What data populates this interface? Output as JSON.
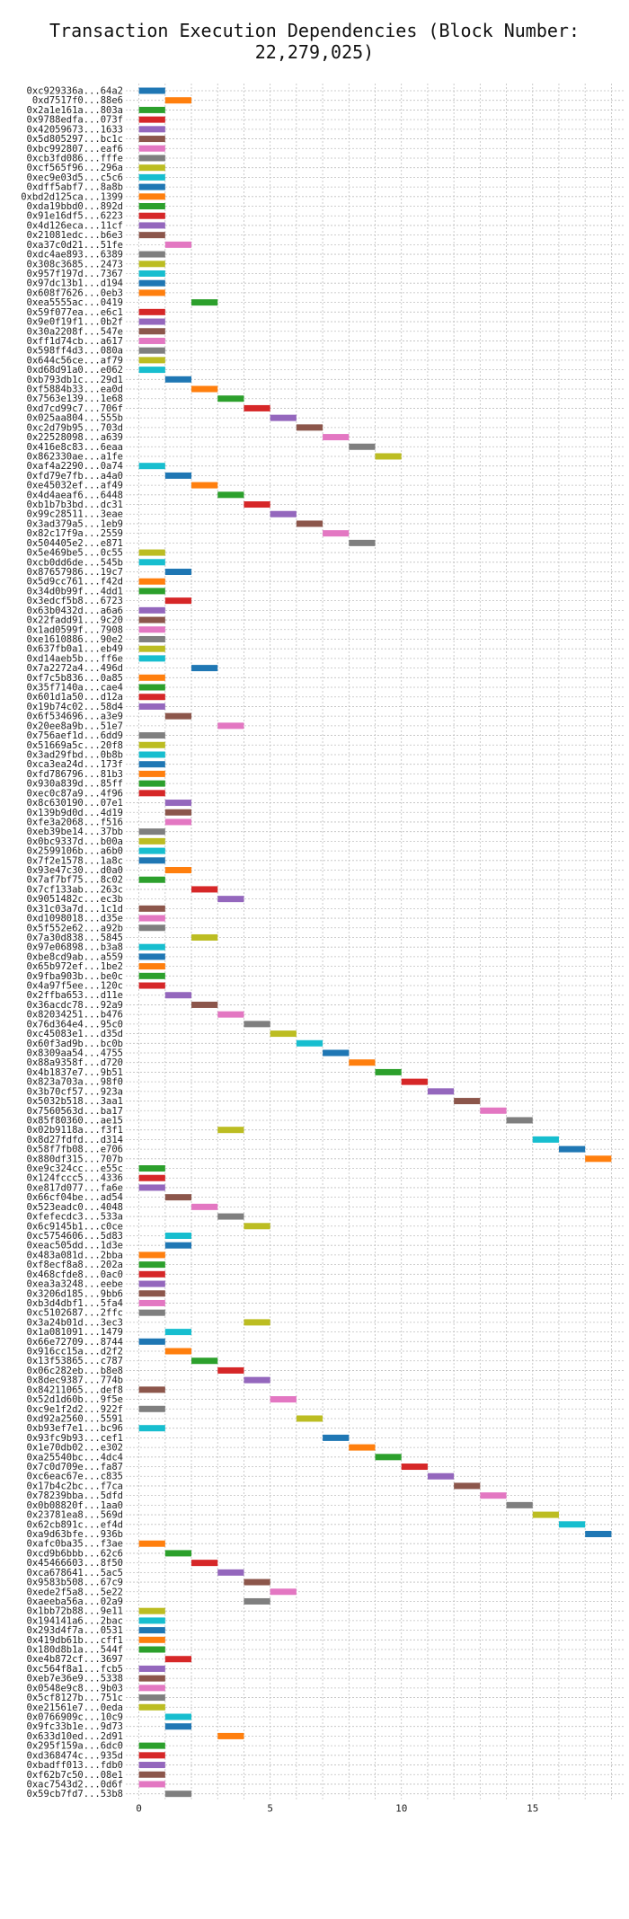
{
  "chart_data": {
    "type": "bar",
    "orientation": "horizontal",
    "title": "Transaction Execution Dependencies (Block Number: 22,279,025)",
    "xlabel": "",
    "ylabel": "",
    "xlim": [
      -0.5,
      18.5
    ],
    "xticks": [
      0,
      5,
      10,
      15
    ],
    "grid": true,
    "palette": [
      "#1f77b4",
      "#ff7f0e",
      "#2ca02c",
      "#d62728",
      "#9467bd",
      "#8c564b",
      "#e377c2",
      "#7f7f7f",
      "#bcbd22",
      "#17becf"
    ],
    "bar_width": 1,
    "transactions": [
      {
        "hash": "0xc929336a...64a2",
        "start": 0
      },
      {
        "hash": "0xd7517f0...88e6",
        "start": 1
      },
      {
        "hash": "0x2a1e161a...803a",
        "start": 0
      },
      {
        "hash": "0x9788edfa...073f",
        "start": 0
      },
      {
        "hash": "0x42059673...1633",
        "start": 0
      },
      {
        "hash": "0x5d805297...bc1c",
        "start": 0
      },
      {
        "hash": "0xbc992807...eaf6",
        "start": 0
      },
      {
        "hash": "0xcb3fd086...fffe",
        "start": 0
      },
      {
        "hash": "0xcf565f96...296a",
        "start": 0
      },
      {
        "hash": "0xec9e03d5...c5c6",
        "start": 0
      },
      {
        "hash": "0xdff5abf7...8a8b",
        "start": 0
      },
      {
        "hash": "0xbd2d125ca...1399",
        "start": 0
      },
      {
        "hash": "0xda19bbd0...892d",
        "start": 0
      },
      {
        "hash": "0x91e16df5...6223",
        "start": 0
      },
      {
        "hash": "0x4d126eca...11cf",
        "start": 0
      },
      {
        "hash": "0x21081edc...b6e3",
        "start": 0
      },
      {
        "hash": "0xa37c0d21...51fe",
        "start": 1
      },
      {
        "hash": "0xdc4ae893...6389",
        "start": 0
      },
      {
        "hash": "0x308c3685...2473",
        "start": 0
      },
      {
        "hash": "0x957f197d...7367",
        "start": 0
      },
      {
        "hash": "0x97dc13b1...d194",
        "start": 0
      },
      {
        "hash": "0x608f7626...0eb3",
        "start": 0
      },
      {
        "hash": "0xea5555ac...0419",
        "start": 2
      },
      {
        "hash": "0x59f077ea...e6c1",
        "start": 0
      },
      {
        "hash": "0x9e0f19f1...0b2f",
        "start": 0
      },
      {
        "hash": "0x30a2208f...547e",
        "start": 0
      },
      {
        "hash": "0xff1d74cb...a617",
        "start": 0
      },
      {
        "hash": "0x598ff4d3...080a",
        "start": 0
      },
      {
        "hash": "0x644c56ce...af79",
        "start": 0
      },
      {
        "hash": "0xd68d91a0...e062",
        "start": 0
      },
      {
        "hash": "0xb793db1c...29d1",
        "start": 1
      },
      {
        "hash": "0xf5884b33...ea0d",
        "start": 2
      },
      {
        "hash": "0x7563e139...1e68",
        "start": 3
      },
      {
        "hash": "0xd7cd99c7...706f",
        "start": 4
      },
      {
        "hash": "0x025aa804...555b",
        "start": 5
      },
      {
        "hash": "0xc2d79b95...703d",
        "start": 6
      },
      {
        "hash": "0x22528098...a639",
        "start": 7
      },
      {
        "hash": "0x416e8c83...6eaa",
        "start": 8
      },
      {
        "hash": "0x862330ae...a1fe",
        "start": 9
      },
      {
        "hash": "0xaf4a2290...0a74",
        "start": 0
      },
      {
        "hash": "0xfd79e7fb...a4a0",
        "start": 1
      },
      {
        "hash": "0xe45032ef...af49",
        "start": 2
      },
      {
        "hash": "0x4d4aeaf6...6448",
        "start": 3
      },
      {
        "hash": "0xb1b7b3bd...dc31",
        "start": 4
      },
      {
        "hash": "0x99c28511...3eae",
        "start": 5
      },
      {
        "hash": "0x3ad379a5...1eb9",
        "start": 6
      },
      {
        "hash": "0x82c17f9a...2559",
        "start": 7
      },
      {
        "hash": "0x504405e2...e871",
        "start": 8
      },
      {
        "hash": "0x5e469be5...0c55",
        "start": 0
      },
      {
        "hash": "0xcb0dd6de...545b",
        "start": 0
      },
      {
        "hash": "0x87657986...19c7",
        "start": 1
      },
      {
        "hash": "0x5d9cc761...f42d",
        "start": 0
      },
      {
        "hash": "0x34d0b99f...4dd1",
        "start": 0
      },
      {
        "hash": "0x3edcf5b8...6723",
        "start": 1
      },
      {
        "hash": "0x63b0432d...a6a6",
        "start": 0
      },
      {
        "hash": "0x22fadd91...9c20",
        "start": 0
      },
      {
        "hash": "0x1ad0599f...7908",
        "start": 0
      },
      {
        "hash": "0xe1610886...90e2",
        "start": 0
      },
      {
        "hash": "0x637fb0a1...eb49",
        "start": 0
      },
      {
        "hash": "0xd14aeb5b...ff6e",
        "start": 0
      },
      {
        "hash": "0x7a2272a4...496d",
        "start": 2
      },
      {
        "hash": "0xf7c5b836...0a85",
        "start": 0
      },
      {
        "hash": "0x35f7140a...cae4",
        "start": 0
      },
      {
        "hash": "0x601d1a50...d12a",
        "start": 0
      },
      {
        "hash": "0x19b74c02...58d4",
        "start": 0
      },
      {
        "hash": "0x6f534696...a3e9",
        "start": 1
      },
      {
        "hash": "0x20ee8a9b...51e7",
        "start": 3
      },
      {
        "hash": "0x756aef1d...6dd9",
        "start": 0
      },
      {
        "hash": "0x51669a5c...20f8",
        "start": 0
      },
      {
        "hash": "0x3ad29fbd...0b8b",
        "start": 0
      },
      {
        "hash": "0xca3ea24d...173f",
        "start": 0
      },
      {
        "hash": "0xfd786796...81b3",
        "start": 0
      },
      {
        "hash": "0x930a839d...85ff",
        "start": 0
      },
      {
        "hash": "0xec0c87a9...4f96",
        "start": 0
      },
      {
        "hash": "0x8c630190...07e1",
        "start": 1
      },
      {
        "hash": "0x139b9d0d...4d19",
        "start": 1
      },
      {
        "hash": "0xfe3a2068...f516",
        "start": 1
      },
      {
        "hash": "0xeb39be14...37bb",
        "start": 0
      },
      {
        "hash": "0x0bc9337d...b00a",
        "start": 0
      },
      {
        "hash": "0x2599106b...a6b0",
        "start": 0
      },
      {
        "hash": "0x7f2e1578...1a8c",
        "start": 0
      },
      {
        "hash": "0x93e47c30...d0a0",
        "start": 1
      },
      {
        "hash": "0x7af7bf75...8c02",
        "start": 0
      },
      {
        "hash": "0x7cf133ab...263c",
        "start": 2
      },
      {
        "hash": "0x9051482c...ec3b",
        "start": 3
      },
      {
        "hash": "0x31c03a7d...1c1d",
        "start": 0
      },
      {
        "hash": "0xd1098018...d35e",
        "start": 0
      },
      {
        "hash": "0x5f552e62...a92b",
        "start": 0
      },
      {
        "hash": "0x7a30d838...5845",
        "start": 2
      },
      {
        "hash": "0x97e06898...b3a8",
        "start": 0
      },
      {
        "hash": "0xbe8cd9ab...a559",
        "start": 0
      },
      {
        "hash": "0x65b972ef...1be2",
        "start": 0
      },
      {
        "hash": "0x9fba903b...be0c",
        "start": 0
      },
      {
        "hash": "0x4a97f5ee...120c",
        "start": 0
      },
      {
        "hash": "0x2ffba653...d11e",
        "start": 1
      },
      {
        "hash": "0x36acdc78...92a9",
        "start": 2
      },
      {
        "hash": "0x82034251...b476",
        "start": 3
      },
      {
        "hash": "0x76d364e4...95c0",
        "start": 4
      },
      {
        "hash": "0xc45083e1...d35d",
        "start": 5
      },
      {
        "hash": "0x60f3ad9b...bc0b",
        "start": 6
      },
      {
        "hash": "0x8309aa54...4755",
        "start": 7
      },
      {
        "hash": "0x88a9358f...d720",
        "start": 8
      },
      {
        "hash": "0x4b1837e7...9b51",
        "start": 9
      },
      {
        "hash": "0x823a703a...98f0",
        "start": 10
      },
      {
        "hash": "0x3b70cf57...923a",
        "start": 11
      },
      {
        "hash": "0x5032b518...3aa1",
        "start": 12
      },
      {
        "hash": "0x7560563d...ba17",
        "start": 13
      },
      {
        "hash": "0x85f80360...ae15",
        "start": 14
      },
      {
        "hash": "0x02b9118a...f3f1",
        "start": 3
      },
      {
        "hash": "0x8d27fdfd...d314",
        "start": 15
      },
      {
        "hash": "0x58f7fb08...e706",
        "start": 16
      },
      {
        "hash": "0x880df315...707b",
        "start": 17
      },
      {
        "hash": "0xe9c324cc...e55c",
        "start": 0
      },
      {
        "hash": "0x124fccc5...4336",
        "start": 0
      },
      {
        "hash": "0xe817d077...fa6e",
        "start": 0
      },
      {
        "hash": "0x66cf04be...ad54",
        "start": 1
      },
      {
        "hash": "0x523eadc0...4048",
        "start": 2
      },
      {
        "hash": "0xfefecdc3...533a",
        "start": 3
      },
      {
        "hash": "0x6c9145b1...c0ce",
        "start": 4
      },
      {
        "hash": "0xc5754606...5d83",
        "start": 1
      },
      {
        "hash": "0xeac505dd...1d3e",
        "start": 1
      },
      {
        "hash": "0x483a081d...2bba",
        "start": 0
      },
      {
        "hash": "0xf8ecf8a8...202a",
        "start": 0
      },
      {
        "hash": "0x468cfde8...0ac0",
        "start": 0
      },
      {
        "hash": "0xea3a3248...eebe",
        "start": 0
      },
      {
        "hash": "0x3206d185...9bb6",
        "start": 0
      },
      {
        "hash": "0xb3d4dbf1...5fa4",
        "start": 0
      },
      {
        "hash": "0xc5102687...2ffc",
        "start": 0
      },
      {
        "hash": "0x3a24b01d...3ec3",
        "start": 4
      },
      {
        "hash": "0x1a081091...1479",
        "start": 1
      },
      {
        "hash": "0x66e72709...8744",
        "start": 0
      },
      {
        "hash": "0x916cc15a...d2f2",
        "start": 1
      },
      {
        "hash": "0x13f53865...c787",
        "start": 2
      },
      {
        "hash": "0x06c282eb...b8e8",
        "start": 3
      },
      {
        "hash": "0x8dec9387...774b",
        "start": 4
      },
      {
        "hash": "0x84211065...def8",
        "start": 0
      },
      {
        "hash": "0x52d1d60b...9f5e",
        "start": 5
      },
      {
        "hash": "0xc9e1f2d2...922f",
        "start": 0
      },
      {
        "hash": "0xd92a2560...5591",
        "start": 6
      },
      {
        "hash": "0xb93ef7e1...bc96",
        "start": 0
      },
      {
        "hash": "0x93fc9b93...cef1",
        "start": 7
      },
      {
        "hash": "0x1e70db02...e302",
        "start": 8
      },
      {
        "hash": "0xa25540bc...4dc4",
        "start": 9
      },
      {
        "hash": "0x7c0d709e...fa87",
        "start": 10
      },
      {
        "hash": "0xc6eac67e...c835",
        "start": 11
      },
      {
        "hash": "0x17b4c2bc...f7ca",
        "start": 12
      },
      {
        "hash": "0x78239bba...5dfd",
        "start": 13
      },
      {
        "hash": "0x0b08820f...1aa0",
        "start": 14
      },
      {
        "hash": "0x23781ea8...569d",
        "start": 15
      },
      {
        "hash": "0x62cb891c...ef4d",
        "start": 16
      },
      {
        "hash": "0xa9d63bfe...936b",
        "start": 17
      },
      {
        "hash": "0xafc0ba35...f3ae",
        "start": 0
      },
      {
        "hash": "0xcd9b6bbb...62c6",
        "start": 1
      },
      {
        "hash": "0x45466603...8f50",
        "start": 2
      },
      {
        "hash": "0xca678641...5ac5",
        "start": 3
      },
      {
        "hash": "0x9583b508...67c9",
        "start": 4
      },
      {
        "hash": "0xede2f5a8...5e22",
        "start": 5
      },
      {
        "hash": "0xaeeba56a...02a9",
        "start": 4
      },
      {
        "hash": "0x1bb72b88...9e11",
        "start": 0
      },
      {
        "hash": "0x194141a6...2bac",
        "start": 0
      },
      {
        "hash": "0x293d4f7a...0531",
        "start": 0
      },
      {
        "hash": "0x419db61b...cff1",
        "start": 0
      },
      {
        "hash": "0x180d8b1a...544f",
        "start": 0
      },
      {
        "hash": "0xe4b872cf...3697",
        "start": 1
      },
      {
        "hash": "0xc564f8a1...fcb5",
        "start": 0
      },
      {
        "hash": "0xeb7e36e9...5338",
        "start": 0
      },
      {
        "hash": "0x0548e9c8...9b03",
        "start": 0
      },
      {
        "hash": "0x5cf8127b...751c",
        "start": 0
      },
      {
        "hash": "0xe21561e7...0eda",
        "start": 0
      },
      {
        "hash": "0x0766909c...10c9",
        "start": 1
      },
      {
        "hash": "0x9fc33b1e...9d73",
        "start": 1
      },
      {
        "hash": "0x633d10ed...2d91",
        "start": 3
      },
      {
        "hash": "0x295f159a...6dc0",
        "start": 0
      },
      {
        "hash": "0xd368474c...935d",
        "start": 0
      },
      {
        "hash": "0xbadff013...fdb0",
        "start": 0
      },
      {
        "hash": "0xf62b7c50...08e1",
        "start": 0
      },
      {
        "hash": "0xac7543d2...0d6f",
        "start": 0
      },
      {
        "hash": "0x59cb7fd7...53b8",
        "start": 1
      }
    ]
  }
}
